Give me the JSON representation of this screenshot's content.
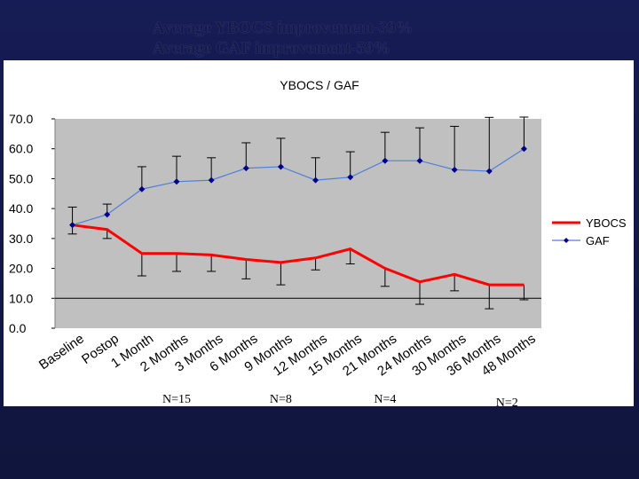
{
  "heading": {
    "line1": "Average YBOCS improvement-39%",
    "line2": "Average GAF improvement-59%"
  },
  "chart_data": {
    "type": "line",
    "title": "YBOCS / GAF",
    "categories": [
      "Baseline",
      "Postop",
      "1 Month",
      "2 Months",
      "3 Months",
      "6 Months",
      "9 Months",
      "12 Months",
      "15 Months",
      "21 Months",
      "24 Months",
      "30 Months",
      "36 Months",
      "48 Months"
    ],
    "ylim": [
      0,
      70
    ],
    "yticks": [
      "0.0",
      "10.0",
      "20.0",
      "30.0",
      "40.0",
      "50.0",
      "60.0",
      "70.0"
    ],
    "series": [
      {
        "name": "YBOCS",
        "color": "#ff0000",
        "values": [
          34.5,
          33,
          25,
          25,
          24.5,
          23,
          22,
          23.5,
          26.5,
          20,
          15.5,
          18,
          14.5,
          14.5
        ],
        "errors": [
          3,
          3,
          7.5,
          6,
          5.5,
          6.5,
          7.5,
          4,
          5,
          6,
          7.5,
          5.5,
          8,
          5
        ]
      },
      {
        "name": "GAF",
        "color": "#4f7fd9",
        "values": [
          34.5,
          38,
          46.5,
          49,
          49.5,
          53.5,
          54,
          49.5,
          50.5,
          56,
          56,
          53,
          52.5,
          60
        ],
        "errors": [
          6,
          3.5,
          7.5,
          8.5,
          7.5,
          8.5,
          9.5,
          7.5,
          8.5,
          9.5,
          11,
          14.5,
          18,
          12
        ]
      }
    ],
    "grid": false,
    "legend_position": "right",
    "annotations": [
      {
        "text": "N=15",
        "category_index": 3
      },
      {
        "text": "N=8",
        "category_index": 6
      },
      {
        "text": "N=4",
        "category_index": 9
      },
      {
        "text": "N=2",
        "category_index": 12
      }
    ]
  }
}
